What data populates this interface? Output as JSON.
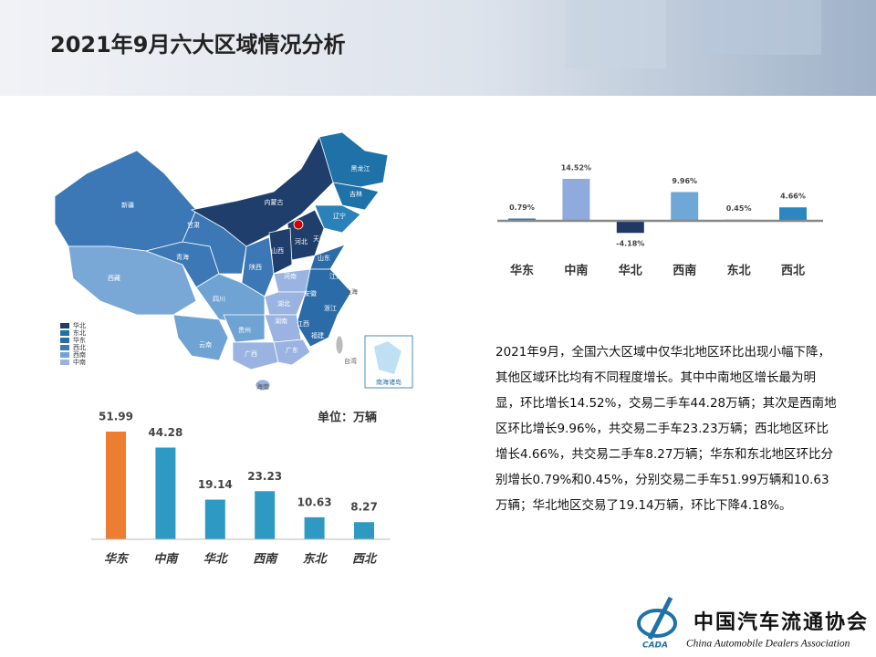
{
  "title": "2021年9月六大区域情况分析",
  "chart_data": [
    {
      "type": "bar",
      "categories": [
        "华东",
        "中南",
        "华北",
        "西南",
        "东北",
        "西北"
      ],
      "values": [
        0.79,
        14.52,
        -4.18,
        9.96,
        0.45,
        4.66
      ],
      "value_labels": [
        "0.79%",
        "14.52%",
        "-4.18%",
        "9.96%",
        "0.45%",
        "4.66%"
      ],
      "colors": [
        "#2e75b6",
        "#8faadc",
        "#1f3864",
        "#6fa8d6",
        "#a5b8cc",
        "#2e86c1"
      ]
    },
    {
      "type": "bar",
      "subtitle": "单位：万辆",
      "categories": [
        "华东",
        "中南",
        "华北",
        "西南",
        "东北",
        "西北"
      ],
      "values": [
        51.99,
        44.28,
        19.14,
        23.23,
        10.63,
        8.27
      ],
      "colors": [
        "#ed7d31",
        "#2e9ac4",
        "#2e9ac4",
        "#2e9ac4",
        "#2e9ac4",
        "#2e9ac4"
      ]
    }
  ],
  "map": {
    "labels": [
      "新疆",
      "西藏",
      "青海",
      "甘肃",
      "内蒙古",
      "黑龙江",
      "吉林",
      "辽宁",
      "河北",
      "山西",
      "山东",
      "陕西",
      "河南",
      "江苏",
      "安徽",
      "湖北",
      "四川",
      "湖南",
      "贵州",
      "云南",
      "广西",
      "广东",
      "浙江",
      "江西",
      "福建",
      "上海",
      "台湾",
      "海南",
      "天津",
      "南海诸岛"
    ],
    "legend": [
      {
        "name": "华北",
        "color": "#1f3e6b"
      },
      {
        "name": "东北",
        "color": "#1f72a8"
      },
      {
        "name": "华东",
        "color": "#2b6ca8"
      },
      {
        "name": "西北",
        "color": "#3b78b5"
      },
      {
        "name": "西南",
        "color": "#6fa3d3"
      },
      {
        "name": "中南",
        "color": "#9ab3e0"
      }
    ]
  },
  "text": "2021年9月，全国六大区域中仅华北地区环比出现小幅下降，其他区域环比均有不同程度增长。其中中南地区增长最为明显，环比增长14.52%，交易二手车44.28万辆；其次是西南地区环比增长9.96%，共交易二手车23.23万辆；西北地区环比增长4.66%，共交易二手车8.27万辆；华东和东北地区环比分别增长0.79%和0.45%，分别交易二手车51.99万辆和10.63万辆；华北地区交易了19.14万辆，环比下降4.18%。",
  "logo": {
    "name_cn": "中国汽车流通协会",
    "name_en": "China Automobile Dealers Association",
    "abbr": "CADA"
  }
}
